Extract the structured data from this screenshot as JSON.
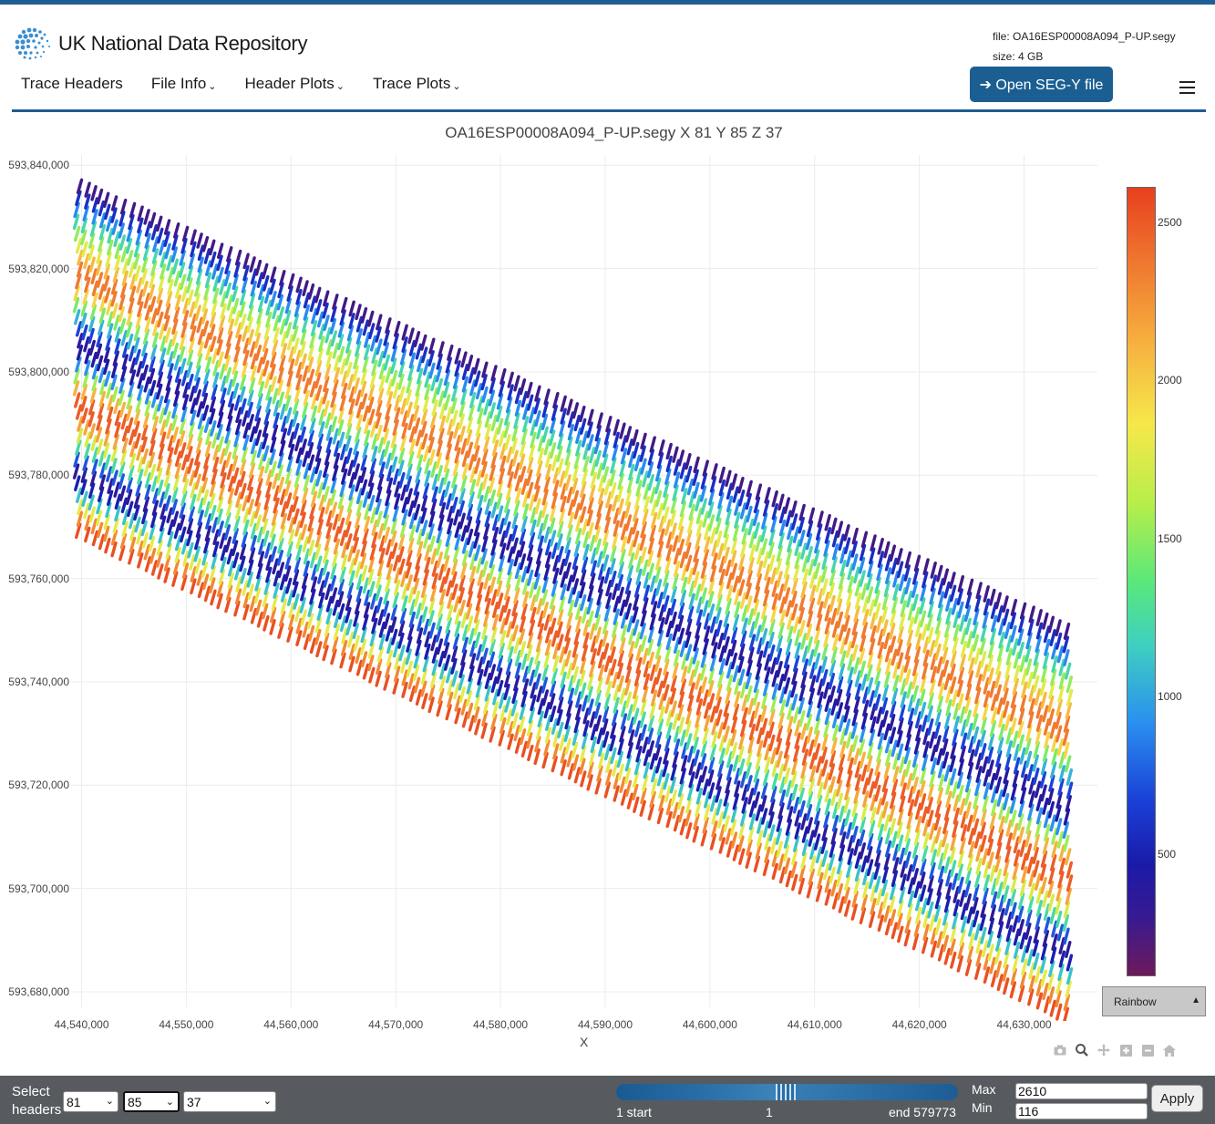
{
  "header": {
    "logo_text": "UK National Data Repository",
    "file_label": "file: OA16ESP00008A094_P-UP.segy",
    "size_label": "size: 4 GB",
    "open_button": "➔ Open SEG-Y file"
  },
  "nav": {
    "items": [
      {
        "label": "Trace Headers",
        "dropdown": false
      },
      {
        "label": "File Info",
        "dropdown": true
      },
      {
        "label": "Header Plots",
        "dropdown": true
      },
      {
        "label": "Trace Plots",
        "dropdown": true
      }
    ]
  },
  "plot": {
    "title": "OA16ESP00008A094_P-UP.segy X 81 Y 85 Z 37",
    "xlabel": "X",
    "colormap": "Rainbow",
    "modebar_icons": [
      "camera-icon",
      "zoom-icon",
      "pan-icon",
      "zoom-in-icon",
      "zoom-out-icon",
      "home-icon"
    ]
  },
  "chart_data": {
    "type": "scatter",
    "title": "OA16ESP00008A094_P-UP.segy X 81 Y 85 Z 37",
    "xlabel": "X",
    "ylabel": "",
    "x_ticks": [
      "44,540,000",
      "44,550,000",
      "44,560,000",
      "44,570,000",
      "44,580,000",
      "44,590,000",
      "44,600,000",
      "44,610,000",
      "44,620,000",
      "44,630,000"
    ],
    "y_ticks": [
      "593,840,000",
      "593,820,000",
      "593,800,000",
      "593,780,000",
      "593,760,000",
      "593,740,000",
      "593,720,000",
      "593,700,000",
      "593,680,000"
    ],
    "xlim": [
      44539000,
      44637000
    ],
    "ylim": [
      593677000,
      593842000
    ],
    "swath_top_edge": [
      [
        44539500,
        593837000
      ],
      [
        44634000,
        593751000
      ]
    ],
    "swath_bottom_edge": [
      [
        44539500,
        593768000
      ],
      [
        44634000,
        593674000
      ]
    ],
    "colorbar": {
      "min": 116,
      "max": 2610,
      "ticks": [
        "2500",
        "2000",
        "1500",
        "1000",
        "500"
      ],
      "colormap": "Rainbow"
    },
    "grid": true
  },
  "footer": {
    "select_label_1": "Select",
    "select_label_2": "headers",
    "x_header": "81",
    "y_header": "85",
    "z_header": "37",
    "range_start": "1 start",
    "range_current": "1",
    "range_end": "end 579773",
    "max_label": "Max",
    "min_label": "Min",
    "max_value": "2610",
    "min_value": "116",
    "apply_button": "Apply"
  }
}
